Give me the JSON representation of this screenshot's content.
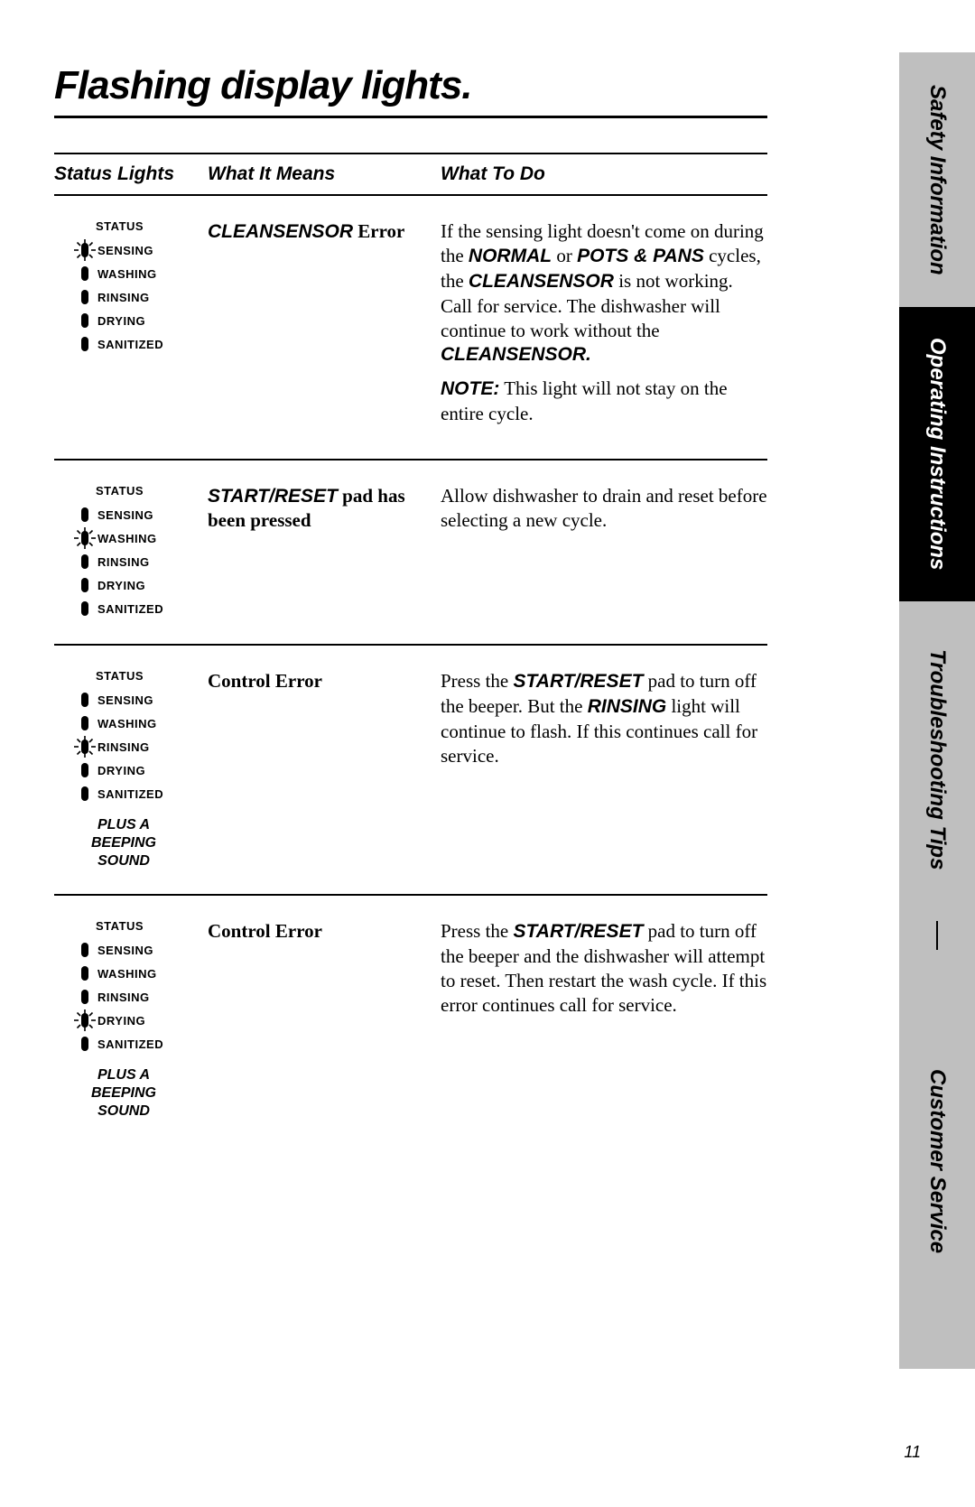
{
  "page": {
    "title": "Flashing display lights.",
    "number": "11"
  },
  "columns": {
    "lights": "Status Lights",
    "means": "What It Means",
    "todo": "What To Do"
  },
  "status_labels": {
    "heading": "STATUS",
    "items": [
      "SENSING",
      "WASHING",
      "RINSING",
      "DRYING",
      "SANITIZED"
    ]
  },
  "beep_note": "PLUS A BEEPING SOUND",
  "rows": [
    {
      "flashing_index": 0,
      "show_beep": false,
      "means_html": "<span class='bi'>CLEANSENSOR</span> <span class='b'>Error</span>",
      "todo_html": "<p>If the sensing light doesn't come on during the <span class='bi'>NORMAL</span> or <span class='bi'>POTS &amp; PANS</span> cycles, the <span class='bi'>CLEANSENSOR</span> is not working. Call for service. The dishwasher will continue to work without the <span class='bi'>CLEANSENSOR.</span></p><p><span class='bi'>NOTE:</span> This light will not stay on the entire cycle.</p>"
    },
    {
      "flashing_index": 1,
      "show_beep": false,
      "means_html": "<span class='bi'>START/RESET</span> <span class='b'>pad has been pressed</span>",
      "todo_html": "<p>Allow dishwasher to drain and reset before selecting a new cycle.</p>"
    },
    {
      "flashing_index": 2,
      "show_beep": true,
      "means_html": "<span class='b'>Control Error</span>",
      "todo_html": "<p>Press the <span class='bi'>START/RESET</span> pad to turn off the beeper. But the <span class='bi'>RINSING</span> light will continue to flash. If this continues call for service.</p>"
    },
    {
      "flashing_index": 3,
      "show_beep": true,
      "means_html": "<span class='b'>Control Error</span>",
      "todo_html": "<p>Press the <span class='bi'>START/RESET</span> pad to turn off the beeper and the dishwasher will attempt to reset. Then restart the wash cycle. If this error continues call for service.</p>"
    }
  ],
  "sidebar": {
    "safety": "Safety Information",
    "ops": "Operating Instructions",
    "trouble": "Troubleshooting Tips",
    "cust": "Customer Service"
  },
  "icons": {
    "pill_svg": "<svg width='10' height='18' viewBox='0 0 10 18'><rect x='1' y='1' width='8' height='16' rx='4' fill='#000'/></svg>",
    "flash_svg": "<svg width='24' height='24' viewBox='0 0 24 24'><g stroke='#000' stroke-width='1.6'><line x1='12' y1='0' x2='12' y2='5'/><line x1='12' y1='19' x2='12' y2='24'/><line x1='0' y1='12' x2='5' y2='12'/><line x1='19' y1='12' x2='24' y2='12'/><line x1='3.5' y1='3.5' x2='7' y2='7'/><line x1='17' y1='17' x2='20.5' y2='20.5'/><line x1='20.5' y1='3.5' x2='17' y2='7'/><line x1='7' y1='17' x2='3.5' y2='20.5'/></g><rect x='8' y='4' width='8' height='16' rx='4' fill='#000'/></svg>"
  }
}
